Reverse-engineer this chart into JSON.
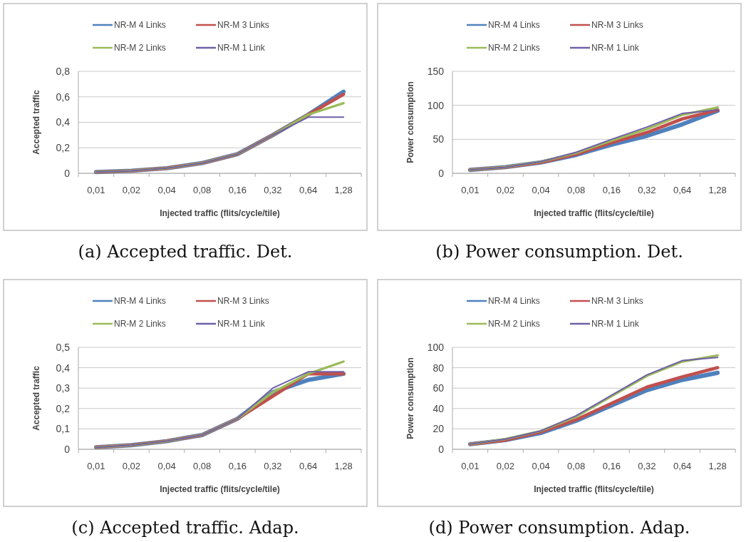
{
  "chart_data": [
    {
      "type": "line",
      "title": "(a) Accepted traffic. Det.",
      "xlabel": "Injected traffic (flits/cycle/tile)",
      "ylabel": "Accepted traffic",
      "categories": [
        "0,01",
        "0,02",
        "0,04",
        "0,08",
        "0,16",
        "0,32",
        "0,64",
        "1,28"
      ],
      "ylim": [
        0,
        0.8
      ],
      "yticks": [
        0,
        {
          "value": 0.2,
          "label": "0,2"
        },
        {
          "value": 0.4,
          "label": "0,4"
        },
        {
          "value": 0.6,
          "label": "0,6"
        },
        {
          "value": 0.8,
          "label": "0,8"
        }
      ],
      "grid": "y",
      "legend": "top",
      "series": [
        {
          "name": "NR-M 4 Links",
          "color": "#4f81bd",
          "values": [
            0.01,
            0.02,
            0.04,
            0.08,
            0.15,
            0.3,
            0.46,
            0.64
          ]
        },
        {
          "name": "NR-M 3 Links",
          "color": "#c0504d",
          "values": [
            0.01,
            0.02,
            0.04,
            0.08,
            0.15,
            0.3,
            0.46,
            0.62
          ]
        },
        {
          "name": "NR-M 2 Links",
          "color": "#9bbb59",
          "values": [
            0.01,
            0.02,
            0.04,
            0.08,
            0.15,
            0.3,
            0.46,
            0.55
          ]
        },
        {
          "name": "NR-M 1 Link",
          "color": "#7060a8",
          "values": [
            0.01,
            0.02,
            0.04,
            0.08,
            0.15,
            0.3,
            0.44,
            0.44
          ]
        }
      ]
    },
    {
      "type": "line",
      "title": "(b) Power consumption. Det.",
      "xlabel": "Injected traffic (flits/cycle/tile)",
      "ylabel": "Power consumption",
      "categories": [
        "0,01",
        "0,02",
        "0,04",
        "0,08",
        "0,16",
        "0,32",
        "0,64",
        "1,28"
      ],
      "ylim": [
        0,
        150
      ],
      "yticks": [
        0,
        50,
        100,
        150
      ],
      "grid": "y",
      "legend": "top",
      "series": [
        {
          "name": "NR-M 4 Links",
          "color": "#4f81bd",
          "values": [
            5,
            9,
            16,
            27,
            42,
            55,
            72,
            92
          ]
        },
        {
          "name": "NR-M 3 Links",
          "color": "#c0504d",
          "values": [
            5,
            9,
            16,
            28,
            45,
            60,
            80,
            93
          ]
        },
        {
          "name": "NR-M 2 Links",
          "color": "#9bbb59",
          "values": [
            5,
            9,
            17,
            30,
            48,
            65,
            86,
            97
          ]
        },
        {
          "name": "NR-M 1 Link",
          "color": "#7060a8",
          "values": [
            5,
            9,
            17,
            31,
            50,
            68,
            88,
            93
          ]
        }
      ]
    },
    {
      "type": "line",
      "title": "(c) Accepted traffic. Adap.",
      "xlabel": "Injected traffic (flits/cycle/tile)",
      "ylabel": "Accepted traffic",
      "categories": [
        "0,01",
        "0,02",
        "0,04",
        "0,08",
        "0,16",
        "0,32",
        "0,64",
        "1,28"
      ],
      "ylim": [
        0,
        0.5
      ],
      "yticks": [
        0,
        {
          "value": 0.1,
          "label": "0,1"
        },
        {
          "value": 0.2,
          "label": "0,2"
        },
        {
          "value": 0.3,
          "label": "0,3"
        },
        {
          "value": 0.4,
          "label": "0,4"
        },
        {
          "value": 0.5,
          "label": "0,5"
        }
      ],
      "grid": "y",
      "legend": "top",
      "series": [
        {
          "name": "NR-M 4 Links",
          "color": "#4f81bd",
          "values": [
            0.01,
            0.02,
            0.04,
            0.07,
            0.15,
            0.28,
            0.34,
            0.37
          ]
        },
        {
          "name": "NR-M 3 Links",
          "color": "#c0504d",
          "values": [
            0.01,
            0.02,
            0.04,
            0.07,
            0.15,
            0.26,
            0.37,
            0.37
          ]
        },
        {
          "name": "NR-M 2 Links",
          "color": "#9bbb59",
          "values": [
            0.01,
            0.02,
            0.04,
            0.07,
            0.15,
            0.28,
            0.37,
            0.43
          ]
        },
        {
          "name": "NR-M 1 Link",
          "color": "#7060a8",
          "values": [
            0.01,
            0.02,
            0.04,
            0.07,
            0.15,
            0.3,
            0.38,
            0.38
          ]
        }
      ]
    },
    {
      "type": "line",
      "title": "(d) Power consumption. Adap.",
      "xlabel": "Injected traffic (flits/cycle/tile)",
      "ylabel": "Power consumption",
      "categories": [
        "0,01",
        "0,02",
        "0,04",
        "0,08",
        "0,16",
        "0,32",
        "0,64",
        "1,28"
      ],
      "ylim": [
        0,
        100
      ],
      "yticks": [
        0,
        20,
        40,
        60,
        80,
        100
      ],
      "grid": "y",
      "legend": "top",
      "series": [
        {
          "name": "NR-M 4 Links",
          "color": "#4f81bd",
          "values": [
            5,
            9,
            16,
            28,
            43,
            58,
            68,
            75
          ]
        },
        {
          "name": "NR-M 3 Links",
          "color": "#c0504d",
          "values": [
            5,
            9,
            17,
            29,
            45,
            61,
            71,
            80
          ]
        },
        {
          "name": "NR-M 2 Links",
          "color": "#9bbb59",
          "values": [
            5,
            10,
            18,
            32,
            52,
            72,
            86,
            92
          ]
        },
        {
          "name": "NR-M 1 Link",
          "color": "#7060a8",
          "values": [
            5,
            10,
            18,
            33,
            53,
            73,
            87,
            90
          ]
        }
      ]
    }
  ]
}
